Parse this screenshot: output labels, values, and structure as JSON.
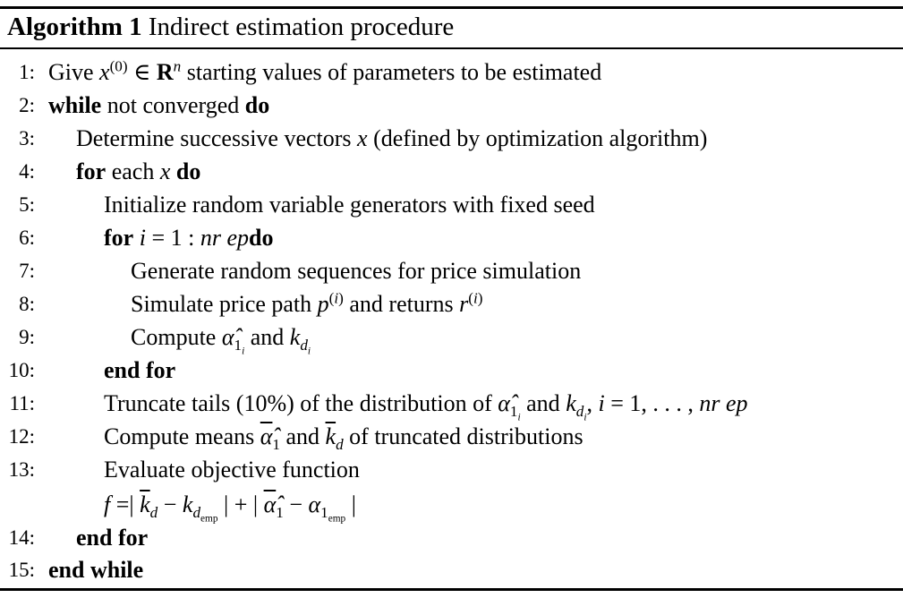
{
  "algorithm": {
    "label": "Algorithm 1",
    "title": "Indirect estimation procedure"
  },
  "lines": [
    {
      "num": "1:",
      "text": "Give x(0) ∈ Rn starting values of parameters to be estimated"
    },
    {
      "num": "2:",
      "text": "while not converged do"
    },
    {
      "num": "3:",
      "text": "Determine successive vectors x (defined by optimization algorithm)"
    },
    {
      "num": "4:",
      "text": "for each x do"
    },
    {
      "num": "5:",
      "text": "Initialize random variable generators with fixed seed"
    },
    {
      "num": "6:",
      "text": "for i = 1 : nr epdo"
    },
    {
      "num": "7:",
      "text": "Generate random sequences for price simulation"
    },
    {
      "num": "8:",
      "text": "Simulate price path p(i) and returns r(i)"
    },
    {
      "num": "9:",
      "text": "Compute α̂1i and kdi"
    },
    {
      "num": "10:",
      "text": "end for"
    },
    {
      "num": "11:",
      "text": "Truncate tails (10%) of the distribution of α̂1i and kdi, i = 1, . . . , nr ep"
    },
    {
      "num": "12:",
      "text": "Compute means α̂1 and kd of truncated distributions"
    },
    {
      "num": "13:",
      "text": "Evaluate objective function"
    },
    {
      "num": "",
      "text": "f =| kd − kdemp | + | α̂1 − α1emp |"
    },
    {
      "num": "14:",
      "text": "end for"
    },
    {
      "num": "15:",
      "text": "end while"
    }
  ]
}
